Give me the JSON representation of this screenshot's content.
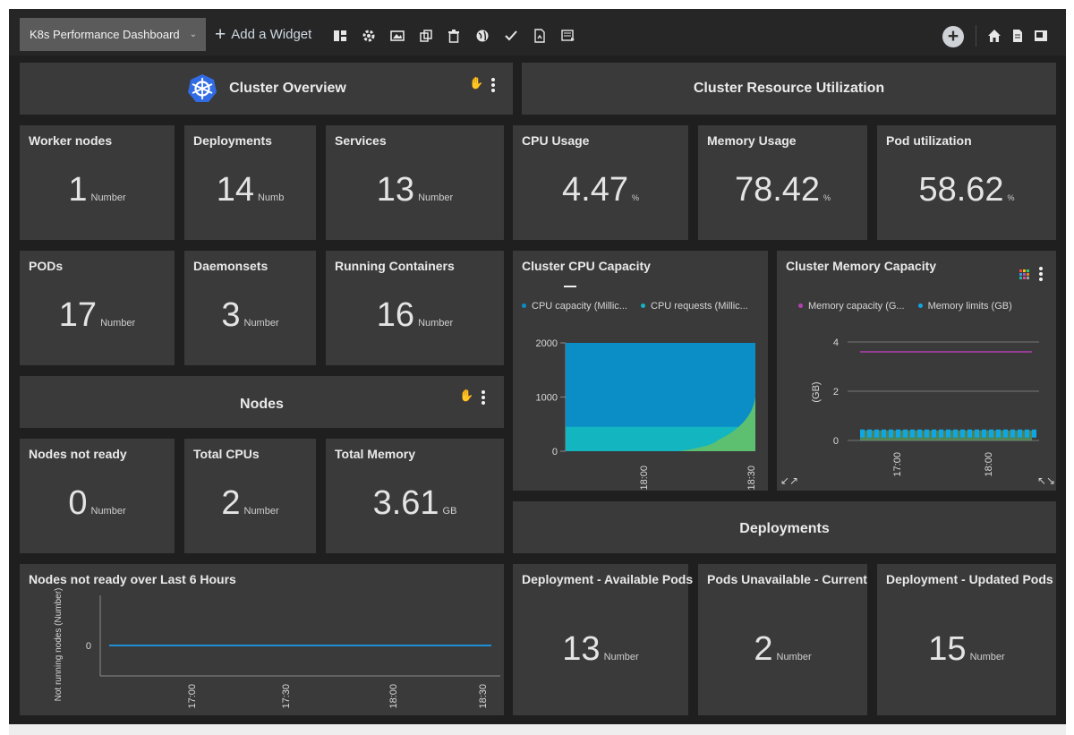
{
  "toolbar": {
    "dashboard_name": "K8s Performance Dashboard",
    "add_widget_label": "Add a Widget",
    "icons": [
      "layout-icon",
      "settings-gear-icon",
      "image-icon",
      "duplicate-icon",
      "trash-icon",
      "globe-icon",
      "check-icon",
      "export-pdf-icon",
      "report-icon",
      "add-circle-icon",
      "home-icon",
      "document-icon",
      "fullscreen-icon"
    ]
  },
  "cluster_overview": {
    "title": "Cluster Overview",
    "logo": "kubernetes-logo"
  },
  "cluster_resource": {
    "title": "Cluster Resource Utilization"
  },
  "nodes_header": {
    "title": "Nodes"
  },
  "deployments_header": {
    "title": "Deployments"
  },
  "metrics": {
    "worker_nodes": {
      "title": "Worker nodes",
      "value": "1",
      "unit": "Number"
    },
    "deployments": {
      "title": "Deployments",
      "value": "14",
      "unit": "Numb"
    },
    "services": {
      "title": "Services",
      "value": "13",
      "unit": "Number"
    },
    "cpu_usage": {
      "title": "CPU Usage",
      "value": "4.47",
      "unit": "%"
    },
    "memory_usage": {
      "title": "Memory Usage",
      "value": "78.42",
      "unit": "%"
    },
    "pod_utilization": {
      "title": "Pod utilization",
      "value": "58.62",
      "unit": "%"
    },
    "pods": {
      "title": "PODs",
      "value": "17",
      "unit": "Number"
    },
    "daemonsets": {
      "title": "Daemonsets",
      "value": "3",
      "unit": "Number"
    },
    "running_containers": {
      "title": "Running Containers",
      "value": "16",
      "unit": "Number"
    },
    "nodes_not_ready": {
      "title": "Nodes not ready",
      "value": "0",
      "unit": "Number"
    },
    "total_cpus": {
      "title": "Total CPUs",
      "value": "2",
      "unit": "Number"
    },
    "total_memory": {
      "title": "Total Memory",
      "value": "3.61",
      "unit": "GB"
    },
    "deploy_available": {
      "title": "Deployment - Available Pods",
      "value": "13",
      "unit": "Number"
    },
    "pods_unavailable": {
      "title": "Pods Unavailable - Current",
      "value": "2",
      "unit": "Number"
    },
    "deploy_updated": {
      "title": "Deployment - Updated Pods",
      "value": "15",
      "unit": "Number"
    }
  },
  "colors": {
    "cpu_capacity": "#0b8ec5",
    "cpu_requests": "#13b5c1",
    "cpu_limit_spike": "#5cc070",
    "memory_capacity": "#b43fb5",
    "memory_limits": "#0fa6e3",
    "memory_limits_fill": "#5cc070",
    "nodes_line": "#1e8fd6"
  },
  "chart_data": [
    {
      "type": "area",
      "title": "Cluster CPU Capacity",
      "legend": [
        "CPU capacity (Millic...",
        "CPU requests (Millic..."
      ],
      "x_ticks": [
        "18:00",
        "18:30"
      ],
      "y_ticks": [
        "0",
        "1000",
        "2000"
      ],
      "ylim": [
        0,
        2000
      ],
      "series": [
        {
          "name": "CPU capacity (Millic...",
          "values": [
            2000,
            2000,
            2000,
            2000,
            2000,
            2000
          ]
        },
        {
          "name": "CPU requests (Millic...",
          "values": [
            450,
            450,
            450,
            450,
            450,
            450
          ]
        }
      ],
      "spike": {
        "values": [
          0,
          0,
          0,
          0,
          200,
          1000
        ]
      }
    },
    {
      "type": "line",
      "title": "Cluster Memory Capacity",
      "legend": [
        "Memory capacity (G...",
        "Memory limits (GB)"
      ],
      "ylabel": "(GB)",
      "x_ticks": [
        "17:00",
        "18:00"
      ],
      "y_ticks": [
        "0",
        "2",
        "4"
      ],
      "ylim": [
        0,
        4
      ],
      "series": [
        {
          "name": "Memory capacity (G...",
          "values": [
            3.6,
            3.6,
            3.6,
            3.6,
            3.6,
            3.6,
            3.6,
            3.6,
            3.6,
            3.6
          ]
        },
        {
          "name": "Memory limits (GB)",
          "values": [
            0.3,
            0.3,
            0.3,
            0.3,
            0.3,
            0.3,
            0.3,
            0.3,
            0.3,
            0.3
          ]
        }
      ]
    },
    {
      "type": "line",
      "title": "Nodes not ready over Last 6 Hours",
      "ylabel": "Not running nodes (Number)",
      "x_ticks": [
        "17:00",
        "17:30",
        "18:00",
        "18:30"
      ],
      "y_ticks": [
        "0"
      ],
      "series": [
        {
          "name": "",
          "values": [
            0,
            0,
            0,
            0,
            0,
            0,
            0,
            0
          ]
        }
      ]
    }
  ]
}
